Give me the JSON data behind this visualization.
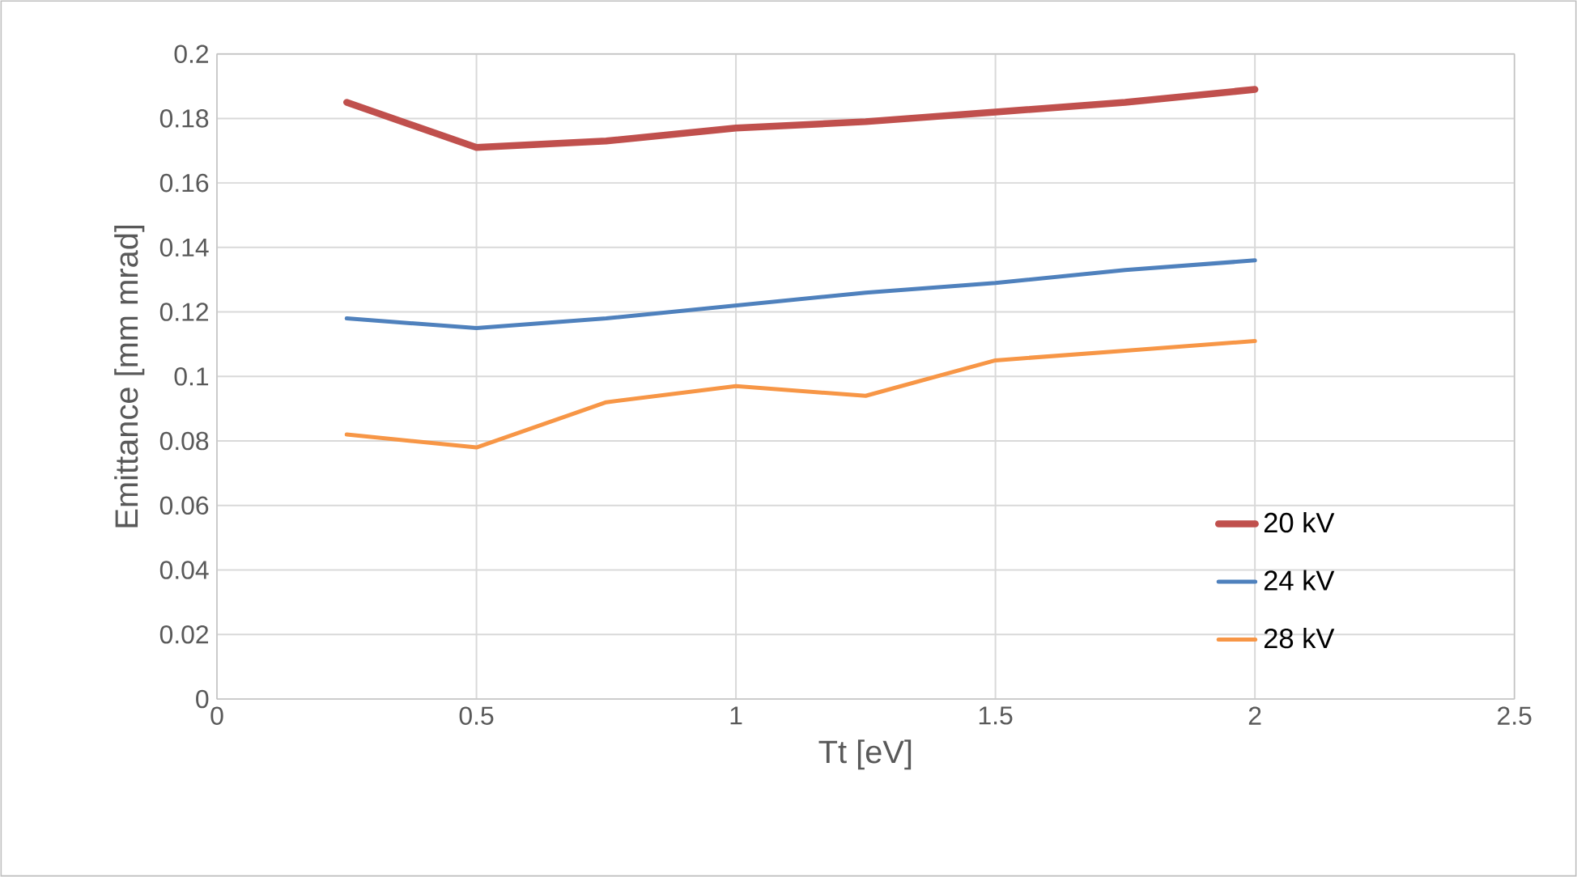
{
  "chart_data": {
    "type": "line",
    "xlabel": "Tt [eV]",
    "ylabel": "Emittance [mm mrad]",
    "x": [
      0.25,
      0.5,
      0.75,
      1,
      1.25,
      1.5,
      1.75,
      2
    ],
    "series": [
      {
        "name": "20 kV",
        "color": "#c0504d",
        "values": [
          0.185,
          0.171,
          0.173,
          0.177,
          0.179,
          0.182,
          0.185,
          0.189
        ]
      },
      {
        "name": "24 kV",
        "color": "#4f81bd",
        "values": [
          0.118,
          0.115,
          0.118,
          0.122,
          0.126,
          0.129,
          0.133,
          0.136
        ]
      },
      {
        "name": "28 kV",
        "color": "#f79646",
        "values": [
          0.082,
          0.078,
          0.092,
          0.097,
          0.094,
          0.105,
          0.108,
          0.111
        ]
      }
    ],
    "xlim": [
      0,
      2.5
    ],
    "xticks": [
      0,
      0.5,
      1,
      1.5,
      2,
      2.5
    ],
    "ylim": [
      0,
      0.2
    ],
    "yticks": [
      0,
      0.02,
      0.04,
      0.06,
      0.08,
      0.1,
      0.12,
      0.14,
      0.16,
      0.18,
      0.2
    ],
    "grid": true,
    "legend": "bottom right",
    "marker": "none",
    "line_style": "solid"
  }
}
